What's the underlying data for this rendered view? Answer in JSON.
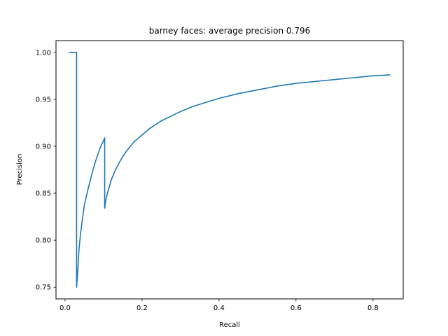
{
  "chart_data": {
    "type": "line",
    "title": "barney faces: average precision 0.796",
    "xlabel": "Recall",
    "ylabel": "Precision",
    "xlim": [
      -0.0235,
      0.8785
    ],
    "ylim": [
      0.7375,
      1.0125
    ],
    "xticks": [
      0.0,
      0.2,
      0.4,
      0.6,
      0.8
    ],
    "xtick_labels": [
      "0.0",
      "0.2",
      "0.4",
      "0.6",
      "0.8"
    ],
    "yticks": [
      0.75,
      0.8,
      0.85,
      0.9,
      0.95,
      1.0
    ],
    "ytick_labels": [
      "0.75",
      "0.80",
      "0.85",
      "0.90",
      "0.95",
      "1.00"
    ],
    "grid": false,
    "legend": "none",
    "colors": {
      "series": "#1f77b4",
      "axes": "#000000",
      "background": "#ffffff"
    },
    "series": [
      {
        "x": [
          0.01,
          0.03,
          0.03,
          0.033,
          0.036,
          0.04,
          0.045,
          0.05,
          0.06,
          0.07,
          0.08,
          0.09,
          0.1,
          0.103,
          0.103,
          0.106,
          0.11,
          0.115,
          0.12,
          0.13,
          0.14,
          0.15,
          0.16,
          0.18,
          0.2,
          0.22,
          0.25,
          0.28,
          0.3,
          0.33,
          0.36,
          0.4,
          0.45,
          0.5,
          0.55,
          0.6,
          0.65,
          0.7,
          0.75,
          0.8,
          0.845
        ],
        "y": [
          1.0,
          1.0,
          0.75,
          0.767,
          0.789,
          0.806,
          0.822,
          0.837,
          0.855,
          0.871,
          0.885,
          0.897,
          0.906,
          0.909,
          0.834,
          0.843,
          0.85,
          0.857,
          0.864,
          0.874,
          0.882,
          0.889,
          0.895,
          0.905,
          0.912,
          0.919,
          0.927,
          0.933,
          0.937,
          0.942,
          0.946,
          0.951,
          0.956,
          0.96,
          0.964,
          0.967,
          0.969,
          0.971,
          0.973,
          0.975,
          0.976
        ]
      }
    ]
  }
}
